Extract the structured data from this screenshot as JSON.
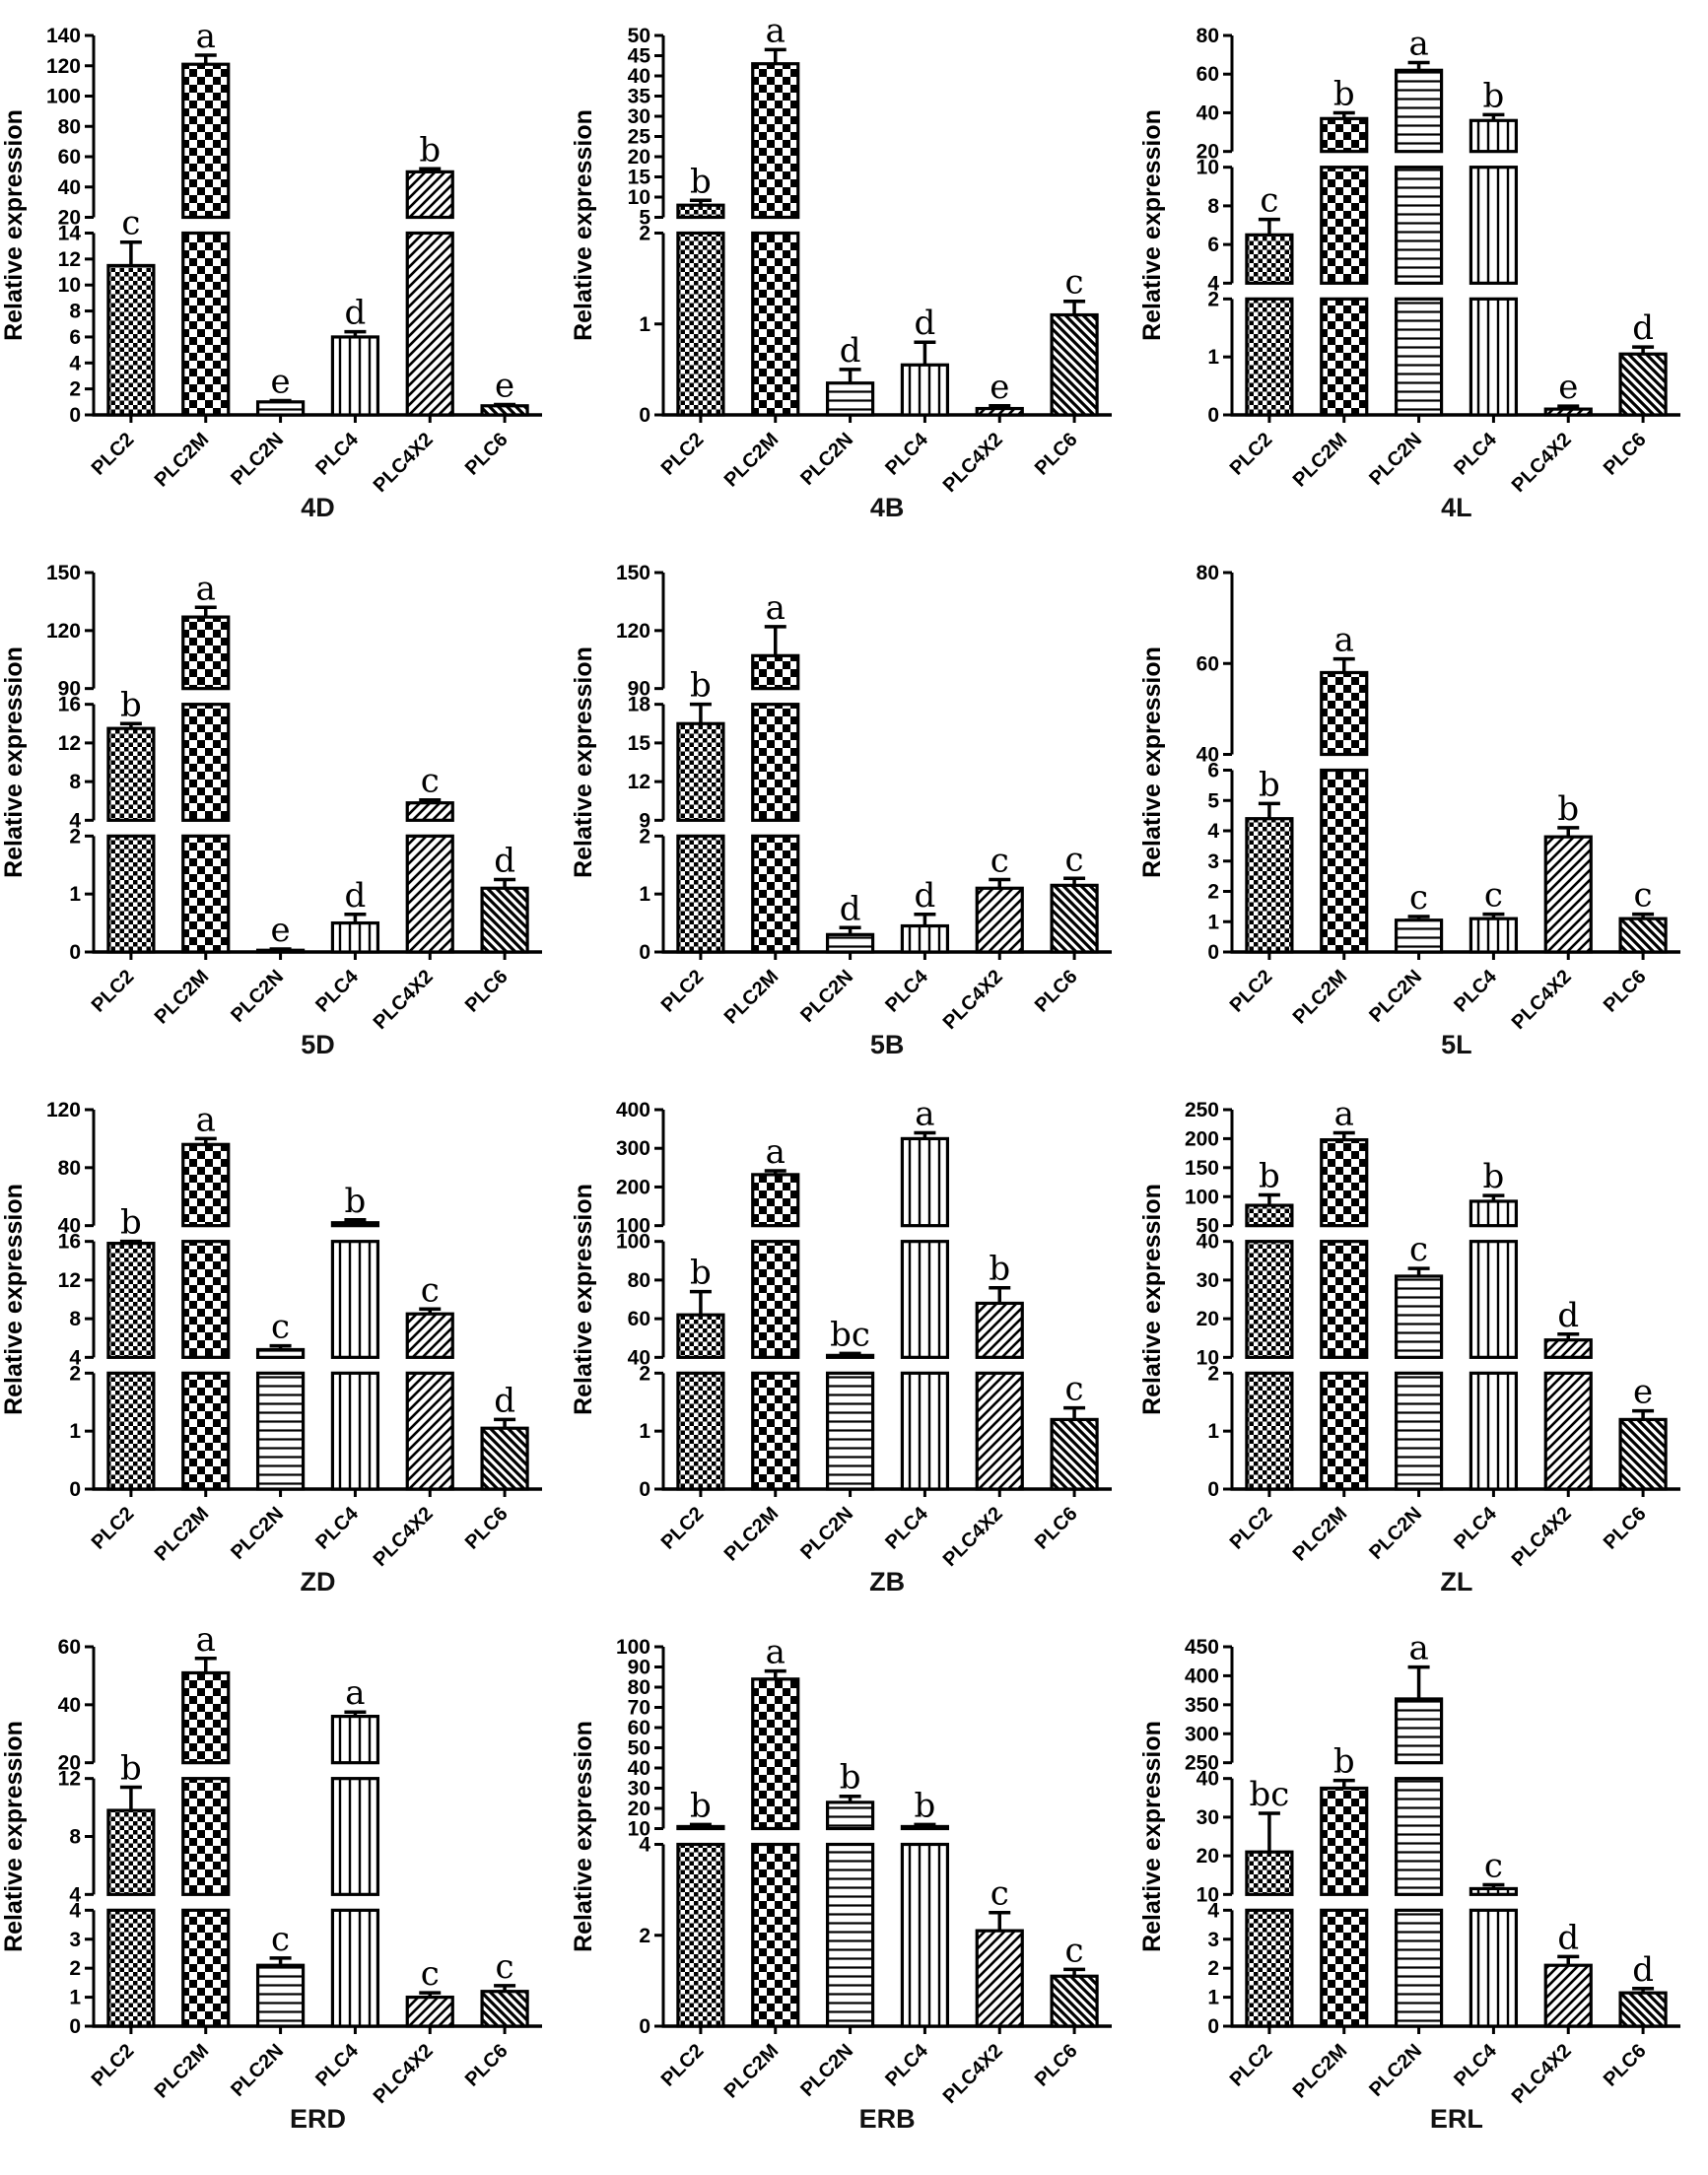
{
  "figure": {
    "ylabel": "Relative expression",
    "categories": [
      "PLC2",
      "PLC2M",
      "PLC2N",
      "PLC4",
      "PLC4X2",
      "PLC6"
    ],
    "pattern_legend": {
      "PLC2": "fine-checkerboard",
      "PLC2M": "coarse-checkerboard",
      "PLC2N": "horizontal-lines",
      "PLC4": "vertical-lines",
      "PLC4X2": "diagonal-forward-lines",
      "PLC6": "diagonal-backward-lines"
    },
    "ink_color": "#000000",
    "background_color": "#ffffff"
  },
  "chart_data": [
    {
      "type": "bar",
      "title": "4D",
      "ylabel": "Relative expression",
      "categories": [
        "PLC2",
        "PLC2M",
        "PLC2N",
        "PLC4",
        "PLC4X2",
        "PLC6"
      ],
      "values": [
        11.5,
        121,
        1.0,
        6.0,
        50,
        0.7
      ],
      "errors": [
        1.8,
        6,
        0.1,
        0.4,
        2,
        0.1
      ],
      "letters": [
        "c",
        "a",
        "e",
        "d",
        "b",
        "e"
      ],
      "axis_segments": [
        {
          "min": 0,
          "max": 14,
          "ticks": [
            0,
            2,
            4,
            6,
            8,
            10,
            12,
            14
          ]
        },
        {
          "min": 20,
          "max": 140,
          "ticks": [
            20,
            40,
            60,
            80,
            100,
            120,
            140
          ]
        }
      ]
    },
    {
      "type": "bar",
      "title": "4B",
      "ylabel": "Relative expression",
      "categories": [
        "PLC2",
        "PLC2M",
        "PLC2N",
        "PLC4",
        "PLC4X2",
        "PLC6"
      ],
      "values": [
        8,
        43,
        0.35,
        0.55,
        0.07,
        1.1
      ],
      "errors": [
        1.2,
        3.5,
        0.15,
        0.25,
        0.03,
        0.15
      ],
      "letters": [
        "b",
        "a",
        "d",
        "d",
        "e",
        "c"
      ],
      "axis_segments": [
        {
          "min": 0,
          "max": 2,
          "ticks": [
            0,
            1,
            2
          ]
        },
        {
          "min": 5,
          "max": 50,
          "ticks": [
            5,
            10,
            15,
            20,
            25,
            30,
            35,
            40,
            45,
            50
          ]
        }
      ]
    },
    {
      "type": "bar",
      "title": "4L",
      "ylabel": "Relative expression",
      "categories": [
        "PLC2",
        "PLC2M",
        "PLC2N",
        "PLC4",
        "PLC4X2",
        "PLC6"
      ],
      "values": [
        6.5,
        37,
        62,
        36,
        0.1,
        1.05
      ],
      "errors": [
        0.8,
        3,
        4,
        3,
        0.05,
        0.12
      ],
      "letters": [
        "c",
        "b",
        "a",
        "b",
        "e",
        "d"
      ],
      "axis_segments": [
        {
          "min": 0,
          "max": 2,
          "ticks": [
            0,
            1,
            2
          ]
        },
        {
          "min": 4,
          "max": 10,
          "ticks": [
            4,
            6,
            8,
            10
          ]
        },
        {
          "min": 20,
          "max": 80,
          "ticks": [
            20,
            40,
            60,
            80
          ]
        }
      ]
    },
    {
      "type": "bar",
      "title": "5D",
      "ylabel": "Relative expression",
      "categories": [
        "PLC2",
        "PLC2M",
        "PLC2N",
        "PLC4",
        "PLC4X2",
        "PLC6"
      ],
      "values": [
        13.5,
        127,
        0.03,
        0.5,
        5.8,
        1.1
      ],
      "errors": [
        0.5,
        5,
        0.02,
        0.15,
        0.3,
        0.15
      ],
      "letters": [
        "b",
        "a",
        "e",
        "d",
        "c",
        "d"
      ],
      "axis_segments": [
        {
          "min": 0,
          "max": 2,
          "ticks": [
            0,
            1,
            2
          ]
        },
        {
          "min": 4,
          "max": 16,
          "ticks": [
            4,
            8,
            12,
            16
          ]
        },
        {
          "min": 90,
          "max": 150,
          "ticks": [
            90,
            120,
            150
          ]
        }
      ]
    },
    {
      "type": "bar",
      "title": "5B",
      "ylabel": "Relative expression",
      "categories": [
        "PLC2",
        "PLC2M",
        "PLC2N",
        "PLC4",
        "PLC4X2",
        "PLC6"
      ],
      "values": [
        16.5,
        107,
        0.3,
        0.45,
        1.1,
        1.15
      ],
      "errors": [
        1.5,
        15,
        0.12,
        0.2,
        0.15,
        0.12
      ],
      "letters": [
        "b",
        "a",
        "d",
        "d",
        "c",
        "c"
      ],
      "axis_segments": [
        {
          "min": 0,
          "max": 2,
          "ticks": [
            0,
            1,
            2
          ]
        },
        {
          "min": 9,
          "max": 18,
          "ticks": [
            9,
            12,
            15,
            18
          ]
        },
        {
          "min": 90,
          "max": 150,
          "ticks": [
            90,
            120,
            150
          ]
        }
      ]
    },
    {
      "type": "bar",
      "title": "5L",
      "ylabel": "Relative expression",
      "categories": [
        "PLC2",
        "PLC2M",
        "PLC2N",
        "PLC4",
        "PLC4X2",
        "PLC6"
      ],
      "values": [
        4.4,
        58,
        1.05,
        1.1,
        3.8,
        1.1
      ],
      "errors": [
        0.5,
        3,
        0.12,
        0.15,
        0.3,
        0.15
      ],
      "letters": [
        "b",
        "a",
        "c",
        "c",
        "b",
        "c"
      ],
      "axis_segments": [
        {
          "min": 0,
          "max": 6,
          "ticks": [
            0,
            1,
            2,
            3,
            4,
            5,
            6
          ]
        },
        {
          "min": 40,
          "max": 80,
          "ticks": [
            40,
            60,
            80
          ]
        }
      ]
    },
    {
      "type": "bar",
      "title": "ZD",
      "ylabel": "Relative expression",
      "categories": [
        "PLC2",
        "PLC2M",
        "PLC2N",
        "PLC4",
        "PLC4X2",
        "PLC6"
      ],
      "values": [
        15.8,
        96,
        4.8,
        42,
        8.5,
        1.05
      ],
      "errors": [
        2,
        4,
        0.4,
        2,
        0.5,
        0.15
      ],
      "letters": [
        "b",
        "a",
        "c",
        "b",
        "c",
        "d"
      ],
      "axis_segments": [
        {
          "min": 0,
          "max": 2,
          "ticks": [
            0,
            1,
            2
          ]
        },
        {
          "min": 4,
          "max": 16,
          "ticks": [
            4,
            8,
            12,
            16
          ]
        },
        {
          "min": 40,
          "max": 120,
          "ticks": [
            40,
            80,
            120
          ]
        }
      ]
    },
    {
      "type": "bar",
      "title": "ZB",
      "ylabel": "Relative expression",
      "categories": [
        "PLC2",
        "PLC2M",
        "PLC2N",
        "PLC4",
        "PLC4X2",
        "PLC6"
      ],
      "values": [
        62,
        232,
        41,
        325,
        68,
        1.2
      ],
      "errors": [
        12,
        10,
        1,
        15,
        8,
        0.2
      ],
      "letters": [
        "b",
        "a",
        "bc",
        "a",
        "b",
        "c"
      ],
      "axis_segments": [
        {
          "min": 0,
          "max": 2,
          "ticks": [
            0,
            1,
            2
          ]
        },
        {
          "min": 40,
          "max": 100,
          "ticks": [
            40,
            60,
            80,
            100
          ]
        },
        {
          "min": 100,
          "max": 400,
          "ticks": [
            100,
            200,
            300,
            400
          ]
        }
      ]
    },
    {
      "type": "bar",
      "title": "ZL",
      "ylabel": "Relative expression",
      "categories": [
        "PLC2",
        "PLC2M",
        "PLC2N",
        "PLC4",
        "PLC4X2",
        "PLC6"
      ],
      "values": [
        85,
        198,
        31,
        92,
        14.5,
        1.2
      ],
      "errors": [
        18,
        12,
        2,
        10,
        1.5,
        0.15
      ],
      "letters": [
        "b",
        "a",
        "c",
        "b",
        "d",
        "e"
      ],
      "axis_segments": [
        {
          "min": 0,
          "max": 2,
          "ticks": [
            0,
            1,
            2
          ]
        },
        {
          "min": 10,
          "max": 40,
          "ticks": [
            10,
            20,
            30,
            40
          ]
        },
        {
          "min": 50,
          "max": 250,
          "ticks": [
            50,
            100,
            150,
            200,
            250
          ]
        }
      ]
    },
    {
      "type": "bar",
      "title": "ERD",
      "ylabel": "Relative expression",
      "categories": [
        "PLC2",
        "PLC2M",
        "PLC2N",
        "PLC4",
        "PLC4X2",
        "PLC6"
      ],
      "values": [
        9.8,
        51,
        2.1,
        36,
        1.0,
        1.2
      ],
      "errors": [
        1.6,
        5,
        0.25,
        1.5,
        0.15,
        0.2
      ],
      "letters": [
        "b",
        "a",
        "c",
        "a",
        "c",
        "c"
      ],
      "axis_segments": [
        {
          "min": 0,
          "max": 4,
          "ticks": [
            0,
            1,
            2,
            3,
            4
          ]
        },
        {
          "min": 4,
          "max": 12,
          "ticks": [
            4,
            8,
            12
          ]
        },
        {
          "min": 20,
          "max": 60,
          "ticks": [
            20,
            40,
            60
          ]
        }
      ]
    },
    {
      "type": "bar",
      "title": "ERB",
      "ylabel": "Relative expression",
      "categories": [
        "PLC2",
        "PLC2M",
        "PLC2N",
        "PLC4",
        "PLC4X2",
        "PLC6"
      ],
      "values": [
        11,
        84,
        23,
        11,
        2.1,
        1.1
      ],
      "errors": [
        1,
        4,
        3,
        1,
        0.4,
        0.15
      ],
      "letters": [
        "b",
        "a",
        "b",
        "b",
        "c",
        "c"
      ],
      "axis_segments": [
        {
          "min": 0,
          "max": 4,
          "ticks": [
            0,
            2,
            4
          ]
        },
        {
          "min": 10,
          "max": 100,
          "ticks": [
            10,
            20,
            30,
            40,
            50,
            60,
            70,
            80,
            90,
            100
          ]
        }
      ]
    },
    {
      "type": "bar",
      "title": "ERL",
      "ylabel": "Relative expression",
      "categories": [
        "PLC2",
        "PLC2M",
        "PLC2N",
        "PLC4",
        "PLC4X2",
        "PLC6"
      ],
      "values": [
        21,
        37.5,
        360,
        11.5,
        2.1,
        1.15
      ],
      "errors": [
        10,
        2,
        55,
        1,
        0.3,
        0.15
      ],
      "letters": [
        "bc",
        "b",
        "a",
        "c",
        "d",
        "d"
      ],
      "axis_segments": [
        {
          "min": 0,
          "max": 4,
          "ticks": [
            0,
            1,
            2,
            3,
            4
          ]
        },
        {
          "min": 10,
          "max": 40,
          "ticks": [
            10,
            20,
            30,
            40
          ]
        },
        {
          "min": 250,
          "max": 450,
          "ticks": [
            250,
            300,
            350,
            400,
            450
          ]
        }
      ]
    }
  ]
}
